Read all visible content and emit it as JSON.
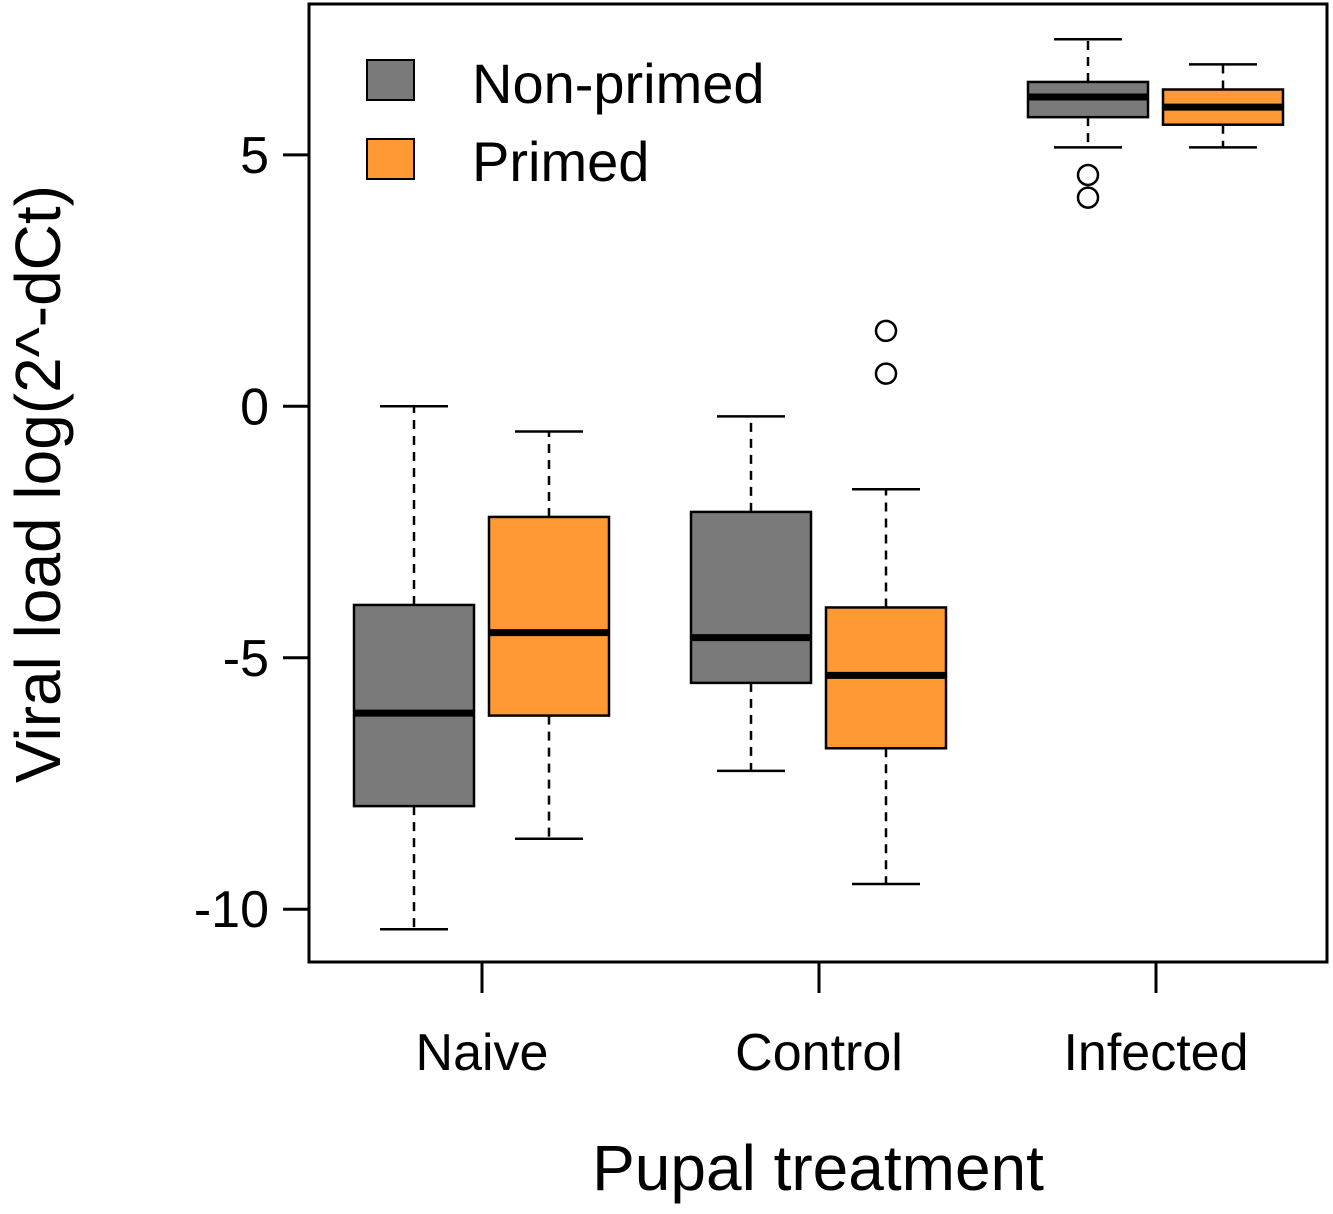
{
  "chart_data": {
    "type": "boxplot",
    "xlabel": "Pupal treatment",
    "ylabel": "Viral load log(2^-dCt)",
    "ylim": [
      -11.05,
      8.0
    ],
    "yticks": [
      -10,
      -5,
      0,
      5
    ],
    "categories": [
      "Naive",
      "Control",
      "Infected"
    ],
    "legend": {
      "position": "top-left",
      "entries": [
        {
          "name": "Non-primed",
          "color": "#7a7a7a"
        },
        {
          "name": "Primed",
          "color": "#ff9933"
        }
      ]
    },
    "series": [
      {
        "name": "Non-primed",
        "color": "#7a7a7a",
        "boxes": [
          {
            "category": "Naive",
            "min": -10.4,
            "q1": -7.95,
            "median": -6.1,
            "q3": -3.95,
            "max": 0.0,
            "outliers": []
          },
          {
            "category": "Control",
            "min": -7.25,
            "q1": -5.5,
            "median": -4.6,
            "q3": -2.1,
            "max": -0.2,
            "outliers": []
          },
          {
            "category": "Infected",
            "min": 5.15,
            "q1": 5.75,
            "median": 6.15,
            "q3": 6.45,
            "max": 7.3,
            "outliers": [
              4.6,
              4.15
            ]
          }
        ]
      },
      {
        "name": "Primed",
        "color": "#ff9933",
        "boxes": [
          {
            "category": "Naive",
            "min": -8.6,
            "q1": -6.15,
            "median": -4.5,
            "q3": -2.2,
            "max": -0.5,
            "outliers": []
          },
          {
            "category": "Control",
            "min": -9.5,
            "q1": -6.8,
            "median": -5.35,
            "q3": -4.0,
            "max": -1.65,
            "outliers": [
              0.65,
              1.5
            ]
          },
          {
            "category": "Infected",
            "min": 5.15,
            "q1": 5.6,
            "median": 5.95,
            "q3": 6.3,
            "max": 6.8,
            "outliers": []
          }
        ]
      }
    ]
  }
}
